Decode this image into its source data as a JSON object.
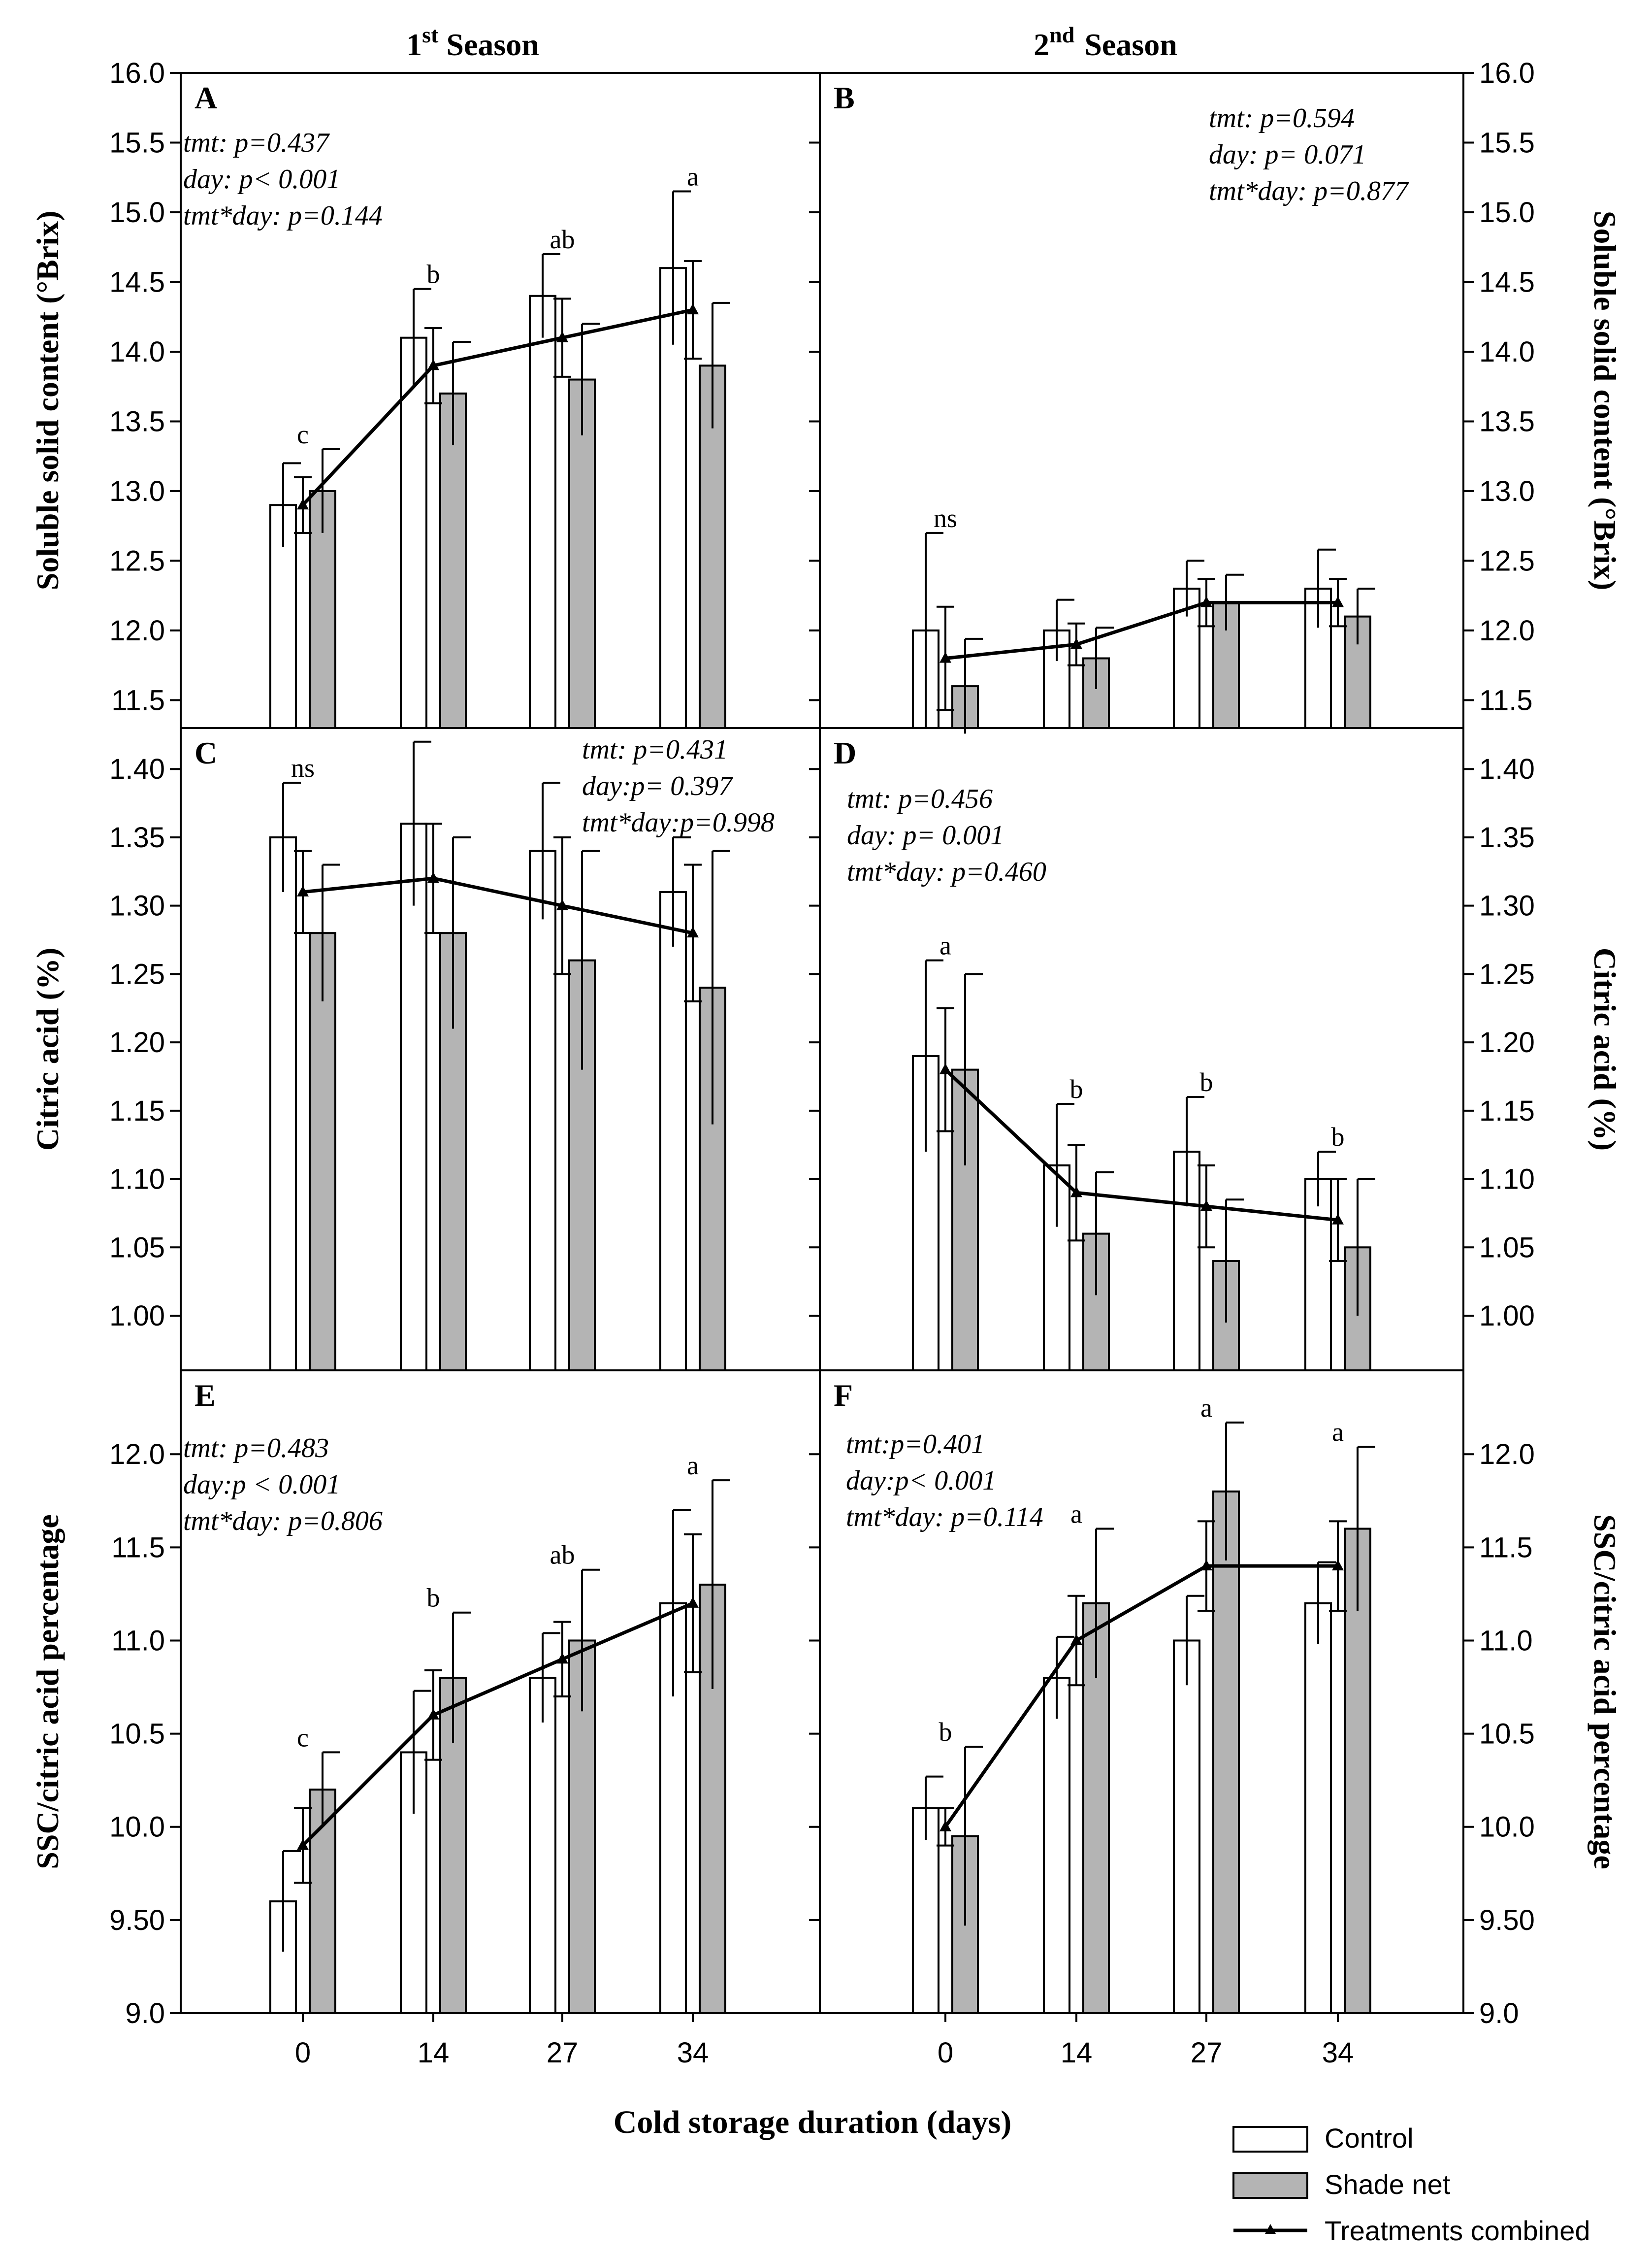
{
  "colors": {
    "control_fill": "#ffffff",
    "shade_fill": "#b4b4b4",
    "ink": "#000000"
  },
  "seasons": [
    "1st Season",
    "2nd Season"
  ],
  "season_parts": [
    {
      "num": "1",
      "sup": "st",
      "word": "Season"
    },
    {
      "num": "2",
      "sup": "nd",
      "word": "Season"
    }
  ],
  "x_axis_label": "Cold storage duration (days)",
  "legend": [
    "Control",
    "Shade net",
    "Treatments combined"
  ],
  "chart_data": [
    {
      "panel": "A",
      "type": "bar",
      "season": "1st Season",
      "ylabel": "Soluble solid content (°Brix)",
      "ylim": [
        11.3,
        16.0
      ],
      "yticks": [
        "11.5",
        "12.0",
        "12.5",
        "13.0",
        "13.5",
        "14.0",
        "14.5",
        "15.0",
        "15.5",
        "16.0"
      ],
      "categories": [
        "0",
        "14",
        "27",
        "34"
      ],
      "series": [
        {
          "name": "Control",
          "values": [
            12.9,
            14.1,
            14.4,
            14.6
          ],
          "err": [
            0.3,
            0.35,
            0.3,
            0.55
          ]
        },
        {
          "name": "Shade net",
          "values": [
            13.0,
            13.7,
            13.8,
            13.9
          ],
          "err": [
            0.3,
            0.37,
            0.4,
            0.45
          ]
        },
        {
          "name": "Treatments combined",
          "values": [
            12.9,
            13.9,
            14.1,
            14.3
          ],
          "err": [
            0.2,
            0.27,
            0.28,
            0.35
          ]
        }
      ],
      "letters": [
        "c",
        "b",
        "ab",
        "a"
      ],
      "stats": [
        "tmt: p=0.437",
        "day: p< 0.001",
        "tmt*day: p=0.144"
      ]
    },
    {
      "panel": "B",
      "type": "bar",
      "season": "2nd Season",
      "ylabel": "Soluble solid content (°Brix)",
      "ylim": [
        11.3,
        16.0
      ],
      "yticks": [
        "11.5",
        "12.0",
        "12.5",
        "13.0",
        "13.5",
        "14.0",
        "14.5",
        "15.0",
        "15.5",
        "16.0"
      ],
      "categories": [
        "0",
        "14",
        "27",
        "34"
      ],
      "series": [
        {
          "name": "Control",
          "values": [
            12.0,
            12.0,
            12.3,
            12.3
          ],
          "err": [
            0.7,
            0.22,
            0.2,
            0.28
          ]
        },
        {
          "name": "Shade net",
          "values": [
            11.6,
            11.8,
            12.2,
            12.1
          ],
          "err": [
            0.34,
            0.22,
            0.2,
            0.2
          ]
        },
        {
          "name": "Treatments combined",
          "values": [
            11.8,
            11.9,
            12.2,
            12.2
          ],
          "err": [
            0.37,
            0.15,
            0.17,
            0.17
          ]
        }
      ],
      "letters": [
        "ns",
        "",
        "",
        ""
      ],
      "stats": [
        "tmt: p=0.594",
        "day: p= 0.071",
        "tmt*day: p=0.877"
      ]
    },
    {
      "panel": "C",
      "type": "bar",
      "season": "1st Season",
      "ylabel": "Citric acid (%)",
      "ylim": [
        0.96,
        1.43
      ],
      "yticks": [
        "1.00",
        "1.05",
        "1.10",
        "1.15",
        "1.20",
        "1.25",
        "1.30",
        "1.35",
        "1.40"
      ],
      "categories": [
        "0",
        "14",
        "27",
        "34"
      ],
      "series": [
        {
          "name": "Control",
          "values": [
            1.35,
            1.36,
            1.34,
            1.31
          ],
          "err": [
            0.04,
            0.06,
            0.05,
            0.04
          ]
        },
        {
          "name": "Shade net",
          "values": [
            1.28,
            1.28,
            1.26,
            1.24
          ],
          "err": [
            0.05,
            0.07,
            0.08,
            0.1
          ]
        },
        {
          "name": "Treatments combined",
          "values": [
            1.31,
            1.32,
            1.3,
            1.28
          ],
          "err": [
            0.03,
            0.04,
            0.05,
            0.05
          ]
        }
      ],
      "letters": [
        "ns",
        "",
        "",
        ""
      ],
      "stats": [
        "tmt: p=0.431",
        "day:p= 0.397",
        "tmt*day:p=0.998"
      ]
    },
    {
      "panel": "D",
      "type": "bar",
      "season": "2nd Season",
      "ylabel": "Citric acid (%)",
      "ylim": [
        0.96,
        1.43
      ],
      "yticks": [
        "1.00",
        "1.05",
        "1.10",
        "1.15",
        "1.20",
        "1.25",
        "1.30",
        "1.35",
        "1.40"
      ],
      "categories": [
        "0",
        "14",
        "27",
        "34"
      ],
      "series": [
        {
          "name": "Control",
          "values": [
            1.19,
            1.11,
            1.12,
            1.1
          ],
          "err": [
            0.07,
            0.045,
            0.04,
            0.02
          ]
        },
        {
          "name": "Shade net",
          "values": [
            1.18,
            1.06,
            1.04,
            1.05
          ],
          "err": [
            0.07,
            0.045,
            0.045,
            0.05
          ]
        },
        {
          "name": "Treatments combined",
          "values": [
            1.18,
            1.09,
            1.08,
            1.07
          ],
          "err": [
            0.045,
            0.035,
            0.03,
            0.03
          ]
        }
      ],
      "letters": [
        "a",
        "b",
        "b",
        "b"
      ],
      "stats": [
        "tmt: p=0.456",
        "day: p= 0.001",
        "tmt*day: p=0.460"
      ]
    },
    {
      "panel": "E",
      "type": "bar",
      "season": "1st Season",
      "ylabel": "SSC/citric acid percentage",
      "ylim": [
        9.0,
        12.45
      ],
      "yticks": [
        "9.0",
        "9.50",
        "10.0",
        "10.5",
        "11.0",
        "11.5",
        "12.0"
      ],
      "categories": [
        "0",
        "14",
        "27",
        "34"
      ],
      "series": [
        {
          "name": "Control",
          "values": [
            9.6,
            10.4,
            10.8,
            11.2
          ],
          "err": [
            0.27,
            0.33,
            0.24,
            0.5
          ]
        },
        {
          "name": "Shade net",
          "values": [
            10.2,
            10.8,
            11.0,
            11.3
          ],
          "err": [
            0.2,
            0.35,
            0.38,
            0.56
          ]
        },
        {
          "name": "Treatments combined",
          "values": [
            9.9,
            10.6,
            10.9,
            11.2
          ],
          "err": [
            0.2,
            0.24,
            0.2,
            0.37
          ]
        }
      ],
      "letters": [
        "c",
        "b",
        "ab",
        "a"
      ],
      "stats": [
        "tmt: p=0.483",
        "day:p < 0.001",
        "tmt*day: p=0.806"
      ]
    },
    {
      "panel": "F",
      "type": "bar",
      "season": "2nd Season",
      "ylabel": "SSC/citric acid percentage",
      "ylim": [
        9.0,
        12.45
      ],
      "yticks": [
        "9.0",
        "9.50",
        "10.0",
        "10.5",
        "11.0",
        "11.5",
        "12.0"
      ],
      "categories": [
        "0",
        "14",
        "27",
        "34"
      ],
      "series": [
        {
          "name": "Control",
          "values": [
            10.1,
            10.8,
            11.0,
            11.2
          ],
          "err": [
            0.17,
            0.22,
            0.24,
            0.22
          ]
        },
        {
          "name": "Shade net",
          "values": [
            9.95,
            11.2,
            11.8,
            11.6
          ],
          "err": [
            0.48,
            0.4,
            0.37,
            0.44
          ]
        },
        {
          "name": "Treatments combined",
          "values": [
            10.0,
            11.0,
            11.4,
            11.4
          ],
          "err": [
            0.1,
            0.24,
            0.24,
            0.24
          ]
        }
      ],
      "letters": [
        "b",
        "a",
        "a",
        "a"
      ],
      "stats": [
        "tmt:p=0.401",
        "day:p< 0.001",
        "tmt*day: p=0.114"
      ]
    }
  ]
}
